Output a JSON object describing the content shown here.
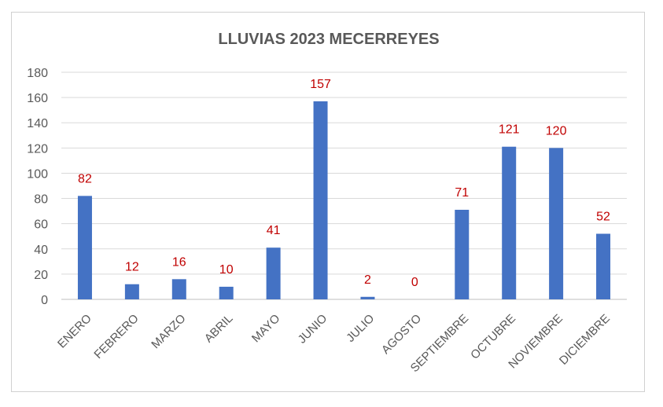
{
  "chart_data": {
    "type": "bar",
    "title": "LLUVIAS 2023 MECERREYES",
    "categories": [
      "ENERO",
      "FEBRERO",
      "MARZO",
      "ABRIL",
      "MAYO",
      "JUNIO",
      "JULIO",
      "AGOSTO",
      "SEPTIEMBRE",
      "OCTUBRE",
      "NOVIEMBRE",
      "DICIEMBRE"
    ],
    "values": [
      82,
      12,
      16,
      10,
      41,
      157,
      2,
      0,
      71,
      121,
      120,
      52
    ],
    "ylim": [
      0,
      180
    ],
    "yticks": [
      0,
      20,
      40,
      60,
      80,
      100,
      120,
      140,
      160,
      180
    ],
    "grid": true,
    "legend": "none",
    "bar_color": "#4472c4",
    "label_color": "#c00000"
  }
}
